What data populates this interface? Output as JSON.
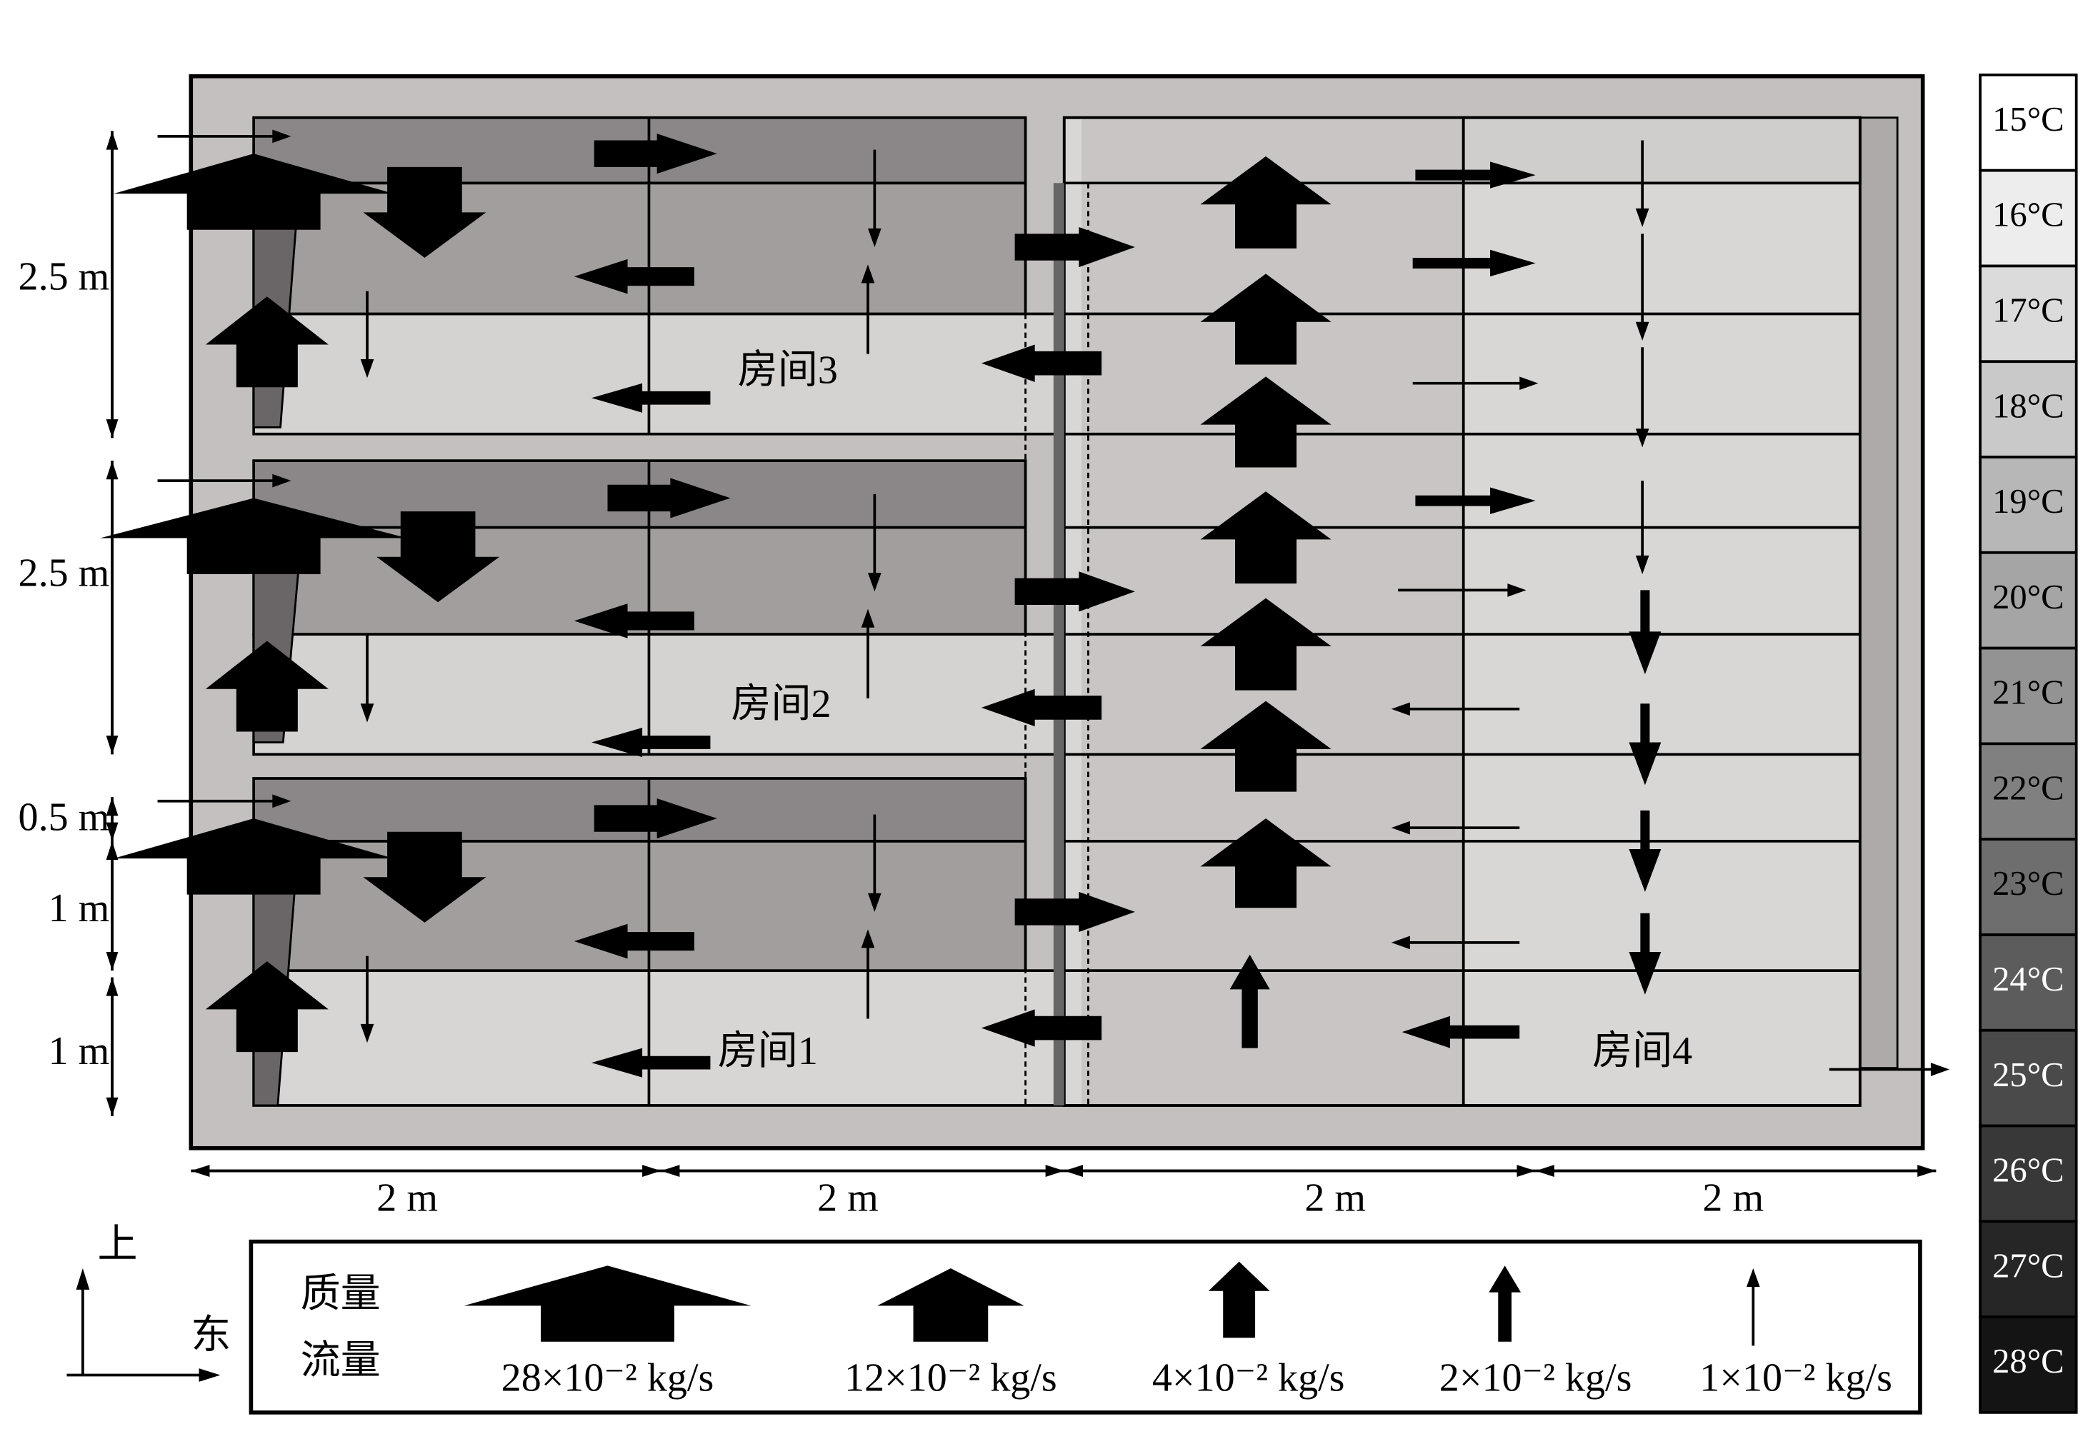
{
  "rooms": [
    "房间1",
    "房间2",
    "房间3",
    "房间4"
  ],
  "dimensions": {
    "vertical": [
      "2.5 m",
      "2.5 m",
      "0.5 m",
      "1 m",
      "1 m"
    ],
    "horizontal": [
      "2 m",
      "2 m",
      "2 m",
      "2 m"
    ]
  },
  "colorbar": [
    "15°C",
    "16°C",
    "17°C",
    "18°C",
    "19°C",
    "20°C",
    "21°C",
    "22°C",
    "23°C",
    "24°C",
    "25°C",
    "26°C",
    "27°C",
    "28°C"
  ],
  "compass": {
    "up": "上",
    "east": "东"
  },
  "legend": {
    "title": [
      "质量",
      "流量"
    ],
    "items": [
      "28×10⁻² kg/s",
      "12×10⁻² kg/s",
      "4×10⁻² kg/s",
      "2×10⁻² kg/s",
      "1×10⁻² kg/s"
    ]
  }
}
